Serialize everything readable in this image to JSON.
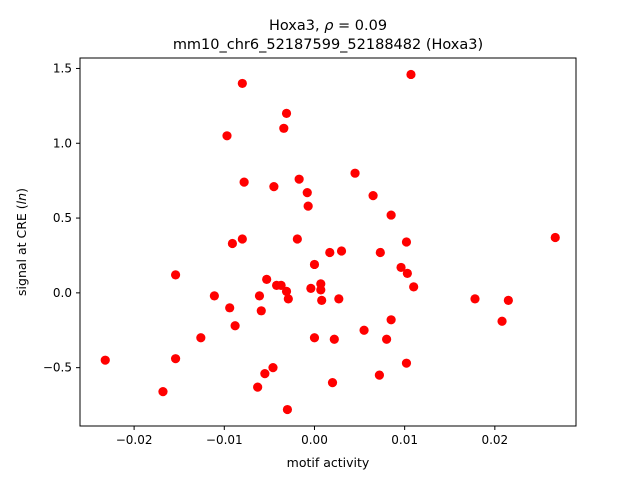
{
  "chart_data": {
    "type": "scatter",
    "title_line1_prefix": "Hoxa3, ",
    "title_line1_symbol": "ρ",
    "title_line1_suffix": " = 0.09",
    "title_line2": "mm10_chr6_52187599_52188482 (Hoxa3)",
    "xlabel": "motif activity",
    "ylabel_prefix": "signal at CRE (",
    "ylabel_italic": "ln",
    "ylabel_suffix": ")",
    "xlim": [
      -0.026,
      0.029
    ],
    "ylim": [
      -0.89,
      1.57
    ],
    "xticks": [
      {
        "value": -0.02,
        "label": "−0.02"
      },
      {
        "value": -0.01,
        "label": "−0.01"
      },
      {
        "value": 0.0,
        "label": "0.00"
      },
      {
        "value": 0.01,
        "label": "0.01"
      },
      {
        "value": 0.02,
        "label": "0.02"
      }
    ],
    "yticks": [
      {
        "value": -0.5,
        "label": "−0.5"
      },
      {
        "value": 0.0,
        "label": "0.0"
      },
      {
        "value": 0.5,
        "label": "0.5"
      },
      {
        "value": 1.0,
        "label": "1.0"
      },
      {
        "value": 1.5,
        "label": "1.5"
      }
    ],
    "grid": false,
    "legend": "none",
    "marker_color": "#ff0000",
    "points": [
      {
        "x": -0.0232,
        "y": -0.45
      },
      {
        "x": -0.0168,
        "y": -0.66
      },
      {
        "x": -0.0154,
        "y": 0.12
      },
      {
        "x": -0.0154,
        "y": -0.44
      },
      {
        "x": -0.0126,
        "y": -0.3
      },
      {
        "x": -0.0111,
        "y": -0.02
      },
      {
        "x": -0.0097,
        "y": 1.05
      },
      {
        "x": -0.0094,
        "y": -0.1
      },
      {
        "x": -0.0091,
        "y": 0.33
      },
      {
        "x": -0.0088,
        "y": -0.22
      },
      {
        "x": -0.008,
        "y": 1.4
      },
      {
        "x": -0.008,
        "y": 0.36
      },
      {
        "x": -0.0078,
        "y": 0.74
      },
      {
        "x": -0.0063,
        "y": -0.63
      },
      {
        "x": -0.0061,
        "y": -0.02
      },
      {
        "x": -0.0059,
        "y": -0.12
      },
      {
        "x": -0.0055,
        "y": -0.54
      },
      {
        "x": -0.0053,
        "y": 0.09
      },
      {
        "x": -0.0046,
        "y": -0.5
      },
      {
        "x": -0.0045,
        "y": 0.71
      },
      {
        "x": -0.0042,
        "y": 0.05
      },
      {
        "x": -0.0037,
        "y": 0.05
      },
      {
        "x": -0.0034,
        "y": 1.1
      },
      {
        "x": -0.0031,
        "y": 1.2
      },
      {
        "x": -0.0031,
        "y": 0.01
      },
      {
        "x": -0.003,
        "y": -0.78
      },
      {
        "x": -0.0029,
        "y": -0.04
      },
      {
        "x": -0.0019,
        "y": 0.36
      },
      {
        "x": -0.0017,
        "y": 0.76
      },
      {
        "x": -0.0008,
        "y": 0.67
      },
      {
        "x": -0.0007,
        "y": 0.58
      },
      {
        "x": -0.0004,
        "y": 0.03
      },
      {
        "x": 0.0,
        "y": 0.19
      },
      {
        "x": 0.0,
        "y": -0.3
      },
      {
        "x": 0.0007,
        "y": 0.06
      },
      {
        "x": 0.0007,
        "y": 0.02
      },
      {
        "x": 0.0008,
        "y": -0.05
      },
      {
        "x": 0.0017,
        "y": 0.27
      },
      {
        "x": 0.002,
        "y": -0.6
      },
      {
        "x": 0.0022,
        "y": -0.31
      },
      {
        "x": 0.0027,
        "y": -0.04
      },
      {
        "x": 0.003,
        "y": 0.28
      },
      {
        "x": 0.0045,
        "y": 0.8
      },
      {
        "x": 0.0055,
        "y": -0.25
      },
      {
        "x": 0.0065,
        "y": 0.65
      },
      {
        "x": 0.0072,
        "y": -0.55
      },
      {
        "x": 0.0073,
        "y": 0.27
      },
      {
        "x": 0.008,
        "y": -0.31
      },
      {
        "x": 0.0085,
        "y": 0.52
      },
      {
        "x": 0.0085,
        "y": -0.18
      },
      {
        "x": 0.0096,
        "y": 0.17
      },
      {
        "x": 0.0102,
        "y": 0.34
      },
      {
        "x": 0.0102,
        "y": -0.47
      },
      {
        "x": 0.0103,
        "y": 0.13
      },
      {
        "x": 0.0107,
        "y": 1.46
      },
      {
        "x": 0.011,
        "y": 0.04
      },
      {
        "x": 0.0178,
        "y": -0.04
      },
      {
        "x": 0.0208,
        "y": -0.19
      },
      {
        "x": 0.0215,
        "y": -0.05
      },
      {
        "x": 0.0267,
        "y": 0.37
      }
    ]
  }
}
